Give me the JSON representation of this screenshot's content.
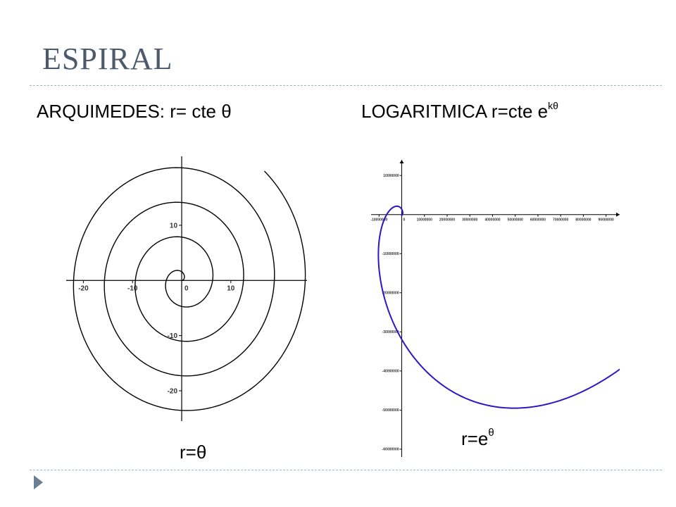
{
  "slide": {
    "title": "ESPIRAL",
    "left_heading": {
      "text": "ARQUIMEDES: r= cte θ"
    },
    "right_heading": {
      "text": "LOGARITMICA r=cte e",
      "sup": "kθ"
    },
    "left_formula": {
      "text": "r=θ"
    },
    "right_formula": {
      "text": "r=e",
      "sup": "θ"
    },
    "colors": {
      "title": "#4c5a6b",
      "rule": "#9fb7c9",
      "bullet": "#6a7f92",
      "spiral_left": "#000000",
      "spiral_right": "#2a18c8"
    }
  },
  "chart_data": [
    {
      "type": "line",
      "title": "",
      "xlabel": "",
      "ylabel": "",
      "grid": false,
      "series": [
        {
          "equation": "r=θ",
          "theta_range": [
            0,
            26.0
          ],
          "color": "#000000"
        }
      ],
      "xlim": [
        -23.5,
        25.5
      ],
      "ylim": [
        -25.5,
        22.5
      ],
      "x_ticks": [
        {
          "value": -20,
          "label": "-20"
        },
        {
          "value": -10,
          "label": "-10"
        },
        {
          "value": 0,
          "label": "0"
        },
        {
          "value": 10,
          "label": "10"
        }
      ],
      "y_ticks": [
        {
          "value": 10,
          "label": "10"
        },
        {
          "value": 0,
          "label": "0"
        },
        {
          "value": -10,
          "label": "-10"
        },
        {
          "value": -20,
          "label": "-20"
        }
      ]
    },
    {
      "type": "line",
      "title": "",
      "xlabel": "",
      "ylabel": "",
      "grid": false,
      "series": [
        {
          "equation": "r=e^θ",
          "theta_range": [
            0,
            18.5
          ],
          "color": "#2a18c8"
        }
      ],
      "xlim": [
        -13500000,
        96000000
      ],
      "ylim": [
        -62000000,
        14000000
      ],
      "x_ticks": [
        {
          "value": -10000000,
          "label": "-10000000"
        },
        {
          "value": 0,
          "label": "0"
        },
        {
          "value": 10000000,
          "label": "10000000"
        },
        {
          "value": 20000000,
          "label": "20000000"
        },
        {
          "value": 30000000,
          "label": "30000000"
        },
        {
          "value": 40000000,
          "label": "40000000"
        },
        {
          "value": 50000000,
          "label": "50000000"
        },
        {
          "value": 60000000,
          "label": "60000000"
        },
        {
          "value": 70000000,
          "label": "70000000"
        },
        {
          "value": 80000000,
          "label": "80000000"
        },
        {
          "value": 90000000,
          "label": "90000000"
        }
      ],
      "y_ticks": [
        {
          "value": 10000000,
          "label": "10000000"
        },
        {
          "value": 0,
          "label": "0"
        },
        {
          "value": -10000000,
          "label": "-10000000"
        },
        {
          "value": -20000000,
          "label": "-20000000"
        },
        {
          "value": -30000000,
          "label": "-30000000"
        },
        {
          "value": -40000000,
          "label": "-40000000"
        },
        {
          "value": -50000000,
          "label": "-50000000"
        },
        {
          "value": -60000000,
          "label": "-60000000"
        }
      ]
    }
  ]
}
